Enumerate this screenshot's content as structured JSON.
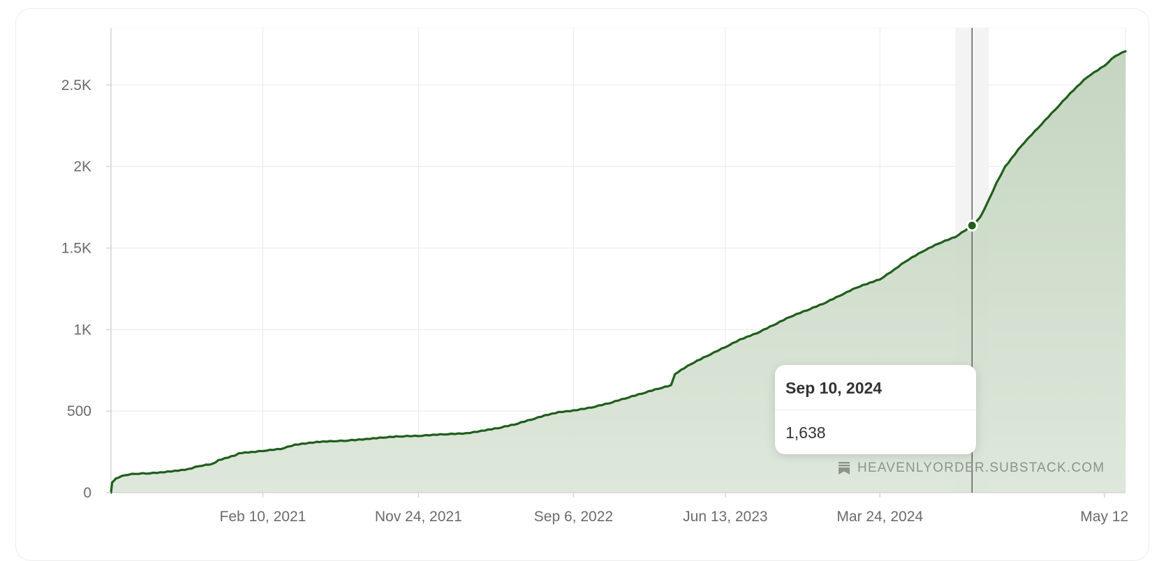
{
  "colors": {
    "line": "#1f5e1a",
    "area_top": "#c2d3bd",
    "area_bottom": "#dce6d9",
    "grid": "#ececec",
    "axis": "#d6d6d6",
    "crosshair": "#555555",
    "highlight_band": "#f3f3f3"
  },
  "chart_data": {
    "type": "area",
    "title": "",
    "xlabel": "",
    "ylabel": "",
    "x_tick_labels": [
      "Feb 10, 2021",
      "Nov 24, 2021",
      "Sep 6, 2022",
      "Jun 13, 2023",
      "Mar 24, 2024",
      "May 12"
    ],
    "y_tick_labels": [
      "0",
      "500",
      "1K",
      "1.5K",
      "2K",
      "2.5K"
    ],
    "y_ticks": [
      0,
      500,
      1000,
      1500,
      2000,
      2500
    ],
    "ylim": [
      0,
      2850
    ],
    "xlim": [
      "2020-05-06",
      "2025-06-20"
    ],
    "grid": true,
    "series": [
      {
        "x": [
          "2020-05-06",
          "2020-05-08",
          "2020-05-15",
          "2020-06-01",
          "2020-06-20",
          "2020-07-10",
          "2020-08-05",
          "2020-09-01",
          "2020-09-25",
          "2020-10-15",
          "2020-11-10",
          "2020-11-20",
          "2020-12-20",
          "2020-12-28",
          "2021-01-20",
          "2021-02-10",
          "2021-03-15",
          "2021-04-10",
          "2021-05-20",
          "2021-06-20",
          "2021-07-10",
          "2021-08-20",
          "2021-09-20",
          "2021-10-20",
          "2021-11-24",
          "2022-01-10",
          "2022-02-20",
          "2022-03-20",
          "2022-04-20",
          "2022-05-20",
          "2022-06-20",
          "2022-07-15",
          "2022-08-10",
          "2022-09-06",
          "2022-10-10",
          "2022-11-10",
          "2022-12-10",
          "2023-01-10",
          "2023-02-10",
          "2023-03-05",
          "2023-03-12",
          "2023-04-10",
          "2023-05-10",
          "2023-06-13",
          "2023-07-10",
          "2023-08-10",
          "2023-09-10",
          "2023-10-10",
          "2023-11-10",
          "2023-12-10",
          "2024-01-10",
          "2024-02-10",
          "2024-03-24",
          "2024-04-20",
          "2024-05-10",
          "2024-06-10",
          "2024-07-10",
          "2024-08-10",
          "2024-09-10",
          "2024-09-25",
          "2024-10-10",
          "2024-10-25",
          "2024-11-10",
          "2024-12-10",
          "2025-01-10",
          "2025-02-10",
          "2025-03-10",
          "2025-04-10",
          "2025-05-12",
          "2025-06-01",
          "2025-06-20"
        ],
        "y": [
          0,
          65,
          90,
          110,
          118,
          120,
          125,
          135,
          145,
          165,
          178,
          200,
          230,
          245,
          250,
          258,
          270,
          295,
          312,
          318,
          320,
          330,
          340,
          347,
          350,
          360,
          365,
          380,
          398,
          420,
          450,
          475,
          495,
          505,
          525,
          550,
          580,
          610,
          640,
          660,
          730,
          790,
          840,
          895,
          940,
          980,
          1030,
          1080,
          1120,
          1160,
          1210,
          1260,
          1310,
          1370,
          1420,
          1480,
          1530,
          1570,
          1638,
          1690,
          1790,
          1900,
          2000,
          2130,
          2240,
          2350,
          2450,
          2550,
          2620,
          2680,
          2710
        ]
      }
    ],
    "tooltip": {
      "date": "Sep 10, 2024",
      "value": "1,638",
      "x": "2024-09-10",
      "y": 1638
    }
  },
  "watermark": {
    "icon": "bookmark-icon",
    "text": "HEAVENLYORDER.SUBSTACK.COM"
  }
}
